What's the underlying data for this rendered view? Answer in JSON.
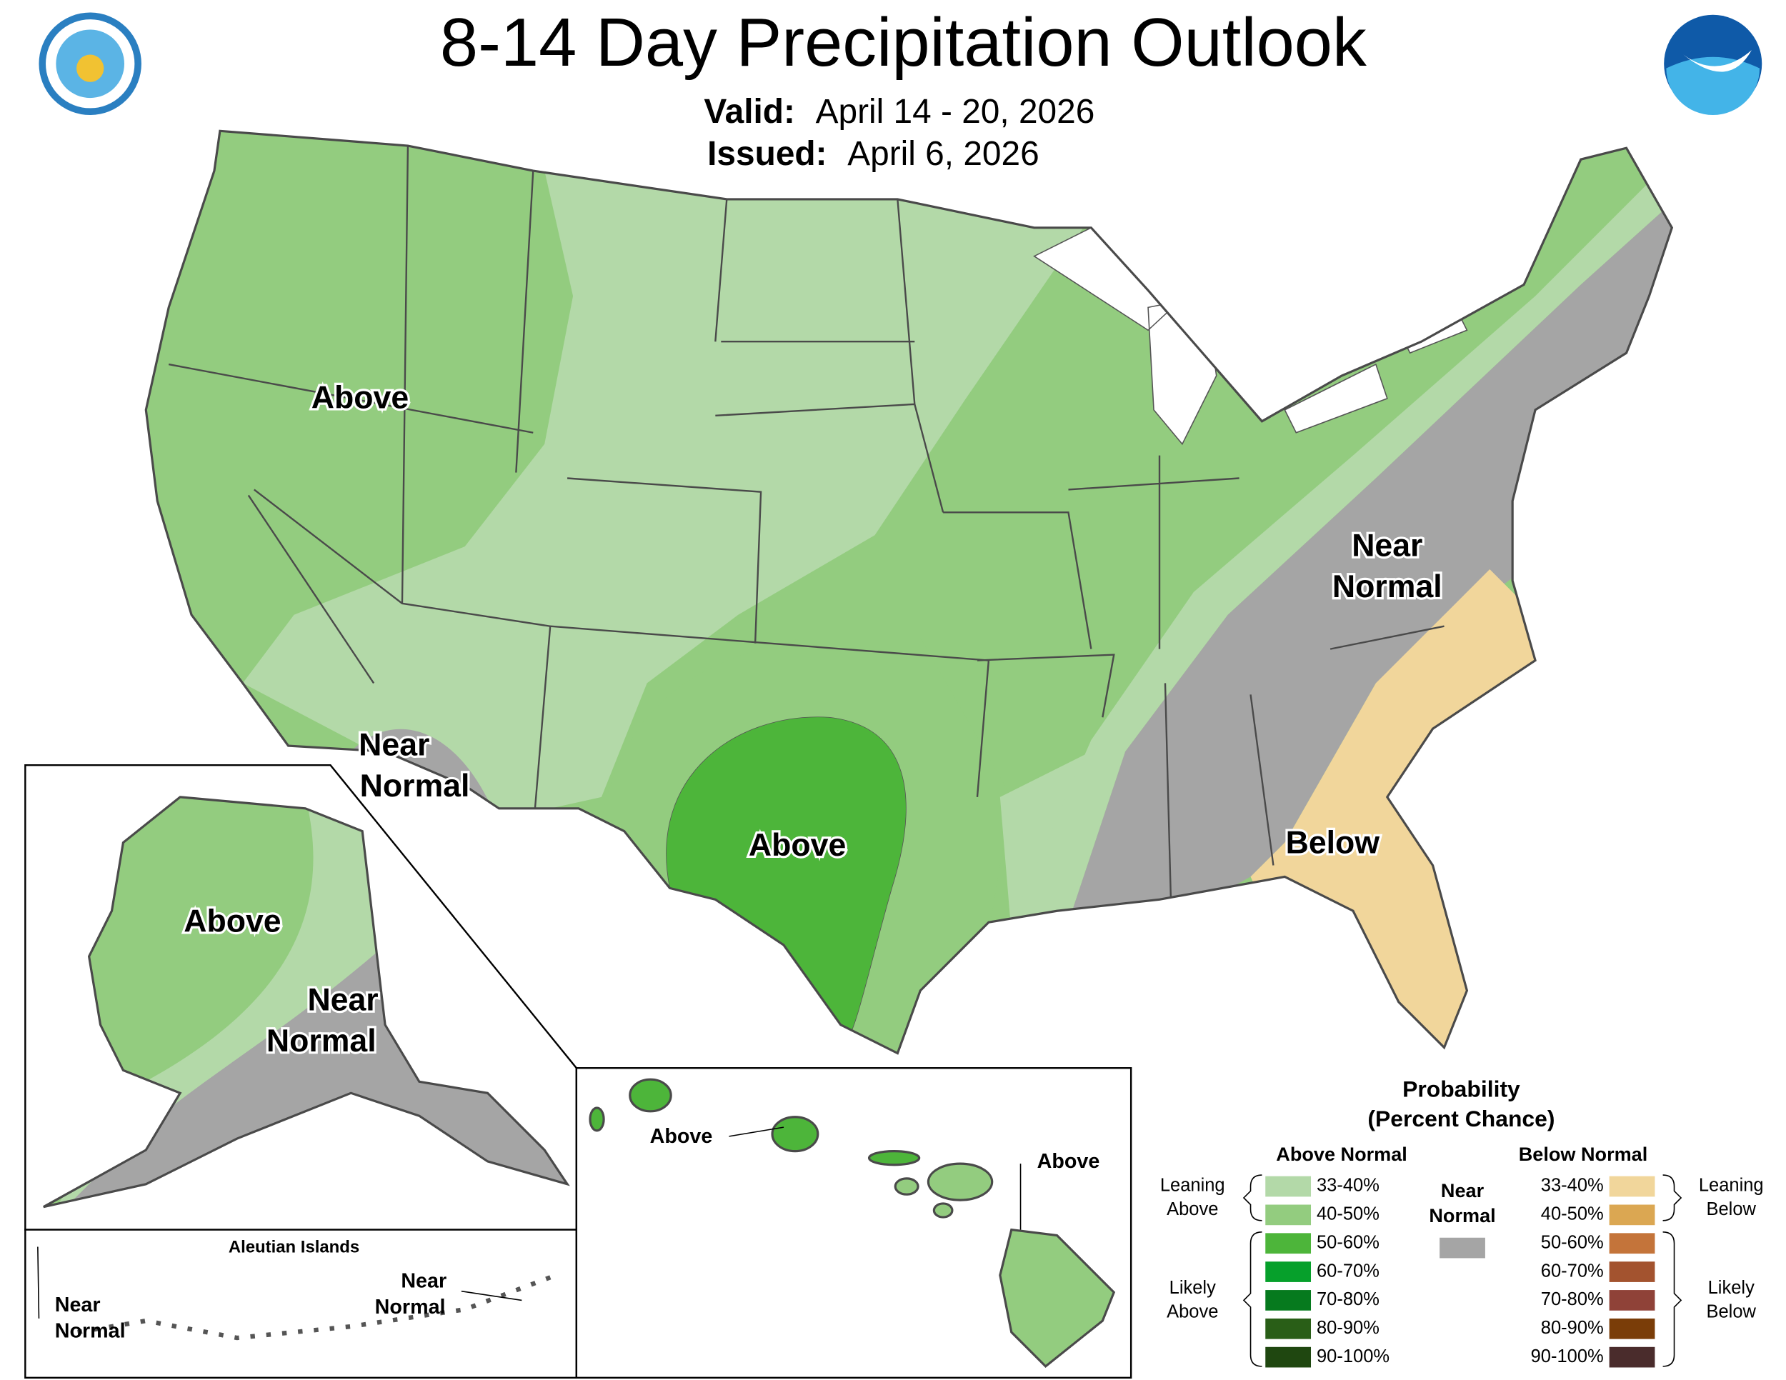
{
  "header": {
    "title": "8-14 Day Precipitation Outlook",
    "valid_label": "Valid:",
    "valid": "April 14 - 20, 2026",
    "issued_label": "Issued:",
    "issued": "April 6, 2026"
  },
  "conus_labels": [
    [
      "Above"
    ],
    [
      "Near",
      "Normal"
    ],
    [
      "Above"
    ],
    [
      "Near",
      "Normal"
    ],
    [
      "Below"
    ]
  ],
  "alaska_labels": [
    [
      "Above"
    ],
    [
      "Near",
      "Normal"
    ]
  ],
  "aleutian": {
    "title": "Aleutian Islands",
    "labels": [
      [
        "Near",
        "Normal"
      ],
      [
        "Near",
        "Normal"
      ]
    ]
  },
  "hawaii_labels": [
    [
      "Above"
    ],
    [
      "Above"
    ]
  ],
  "legend": {
    "title": [
      "Probability",
      "(Percent Chance)"
    ],
    "above": {
      "heading": "Above Normal",
      "items": [
        {
          "label": "33-40%",
          "color": "#b3d9a8"
        },
        {
          "label": "40-50%",
          "color": "#93cc7f"
        },
        {
          "label": "50-60%",
          "color": "#4db53a"
        },
        {
          "label": "60-70%",
          "color": "#06a02b"
        },
        {
          "label": "70-80%",
          "color": "#067a1e"
        },
        {
          "label": "80-90%",
          "color": "#295e17"
        },
        {
          "label": "90-100%",
          "color": "#1f4710"
        }
      ],
      "leaning": [
        "Leaning",
        "Above"
      ],
      "likely": [
        "Likely",
        "Above"
      ]
    },
    "near": {
      "heading": [
        "Near",
        "Normal"
      ],
      "color": "#a5a5a5"
    },
    "below": {
      "heading": "Below Normal",
      "items": [
        {
          "label": "33-40%",
          "color": "#f1d69b"
        },
        {
          "label": "40-50%",
          "color": "#dba752"
        },
        {
          "label": "50-60%",
          "color": "#c4743a"
        },
        {
          "label": "60-70%",
          "color": "#a3532f"
        },
        {
          "label": "70-80%",
          "color": "#8f4238"
        },
        {
          "label": "80-90%",
          "color": "#7a3d08"
        },
        {
          "label": "90-100%",
          "color": "#4a2c2c"
        }
      ],
      "leaning": [
        "Leaning",
        "Below"
      ],
      "likely": [
        "Likely",
        "Below"
      ]
    }
  }
}
